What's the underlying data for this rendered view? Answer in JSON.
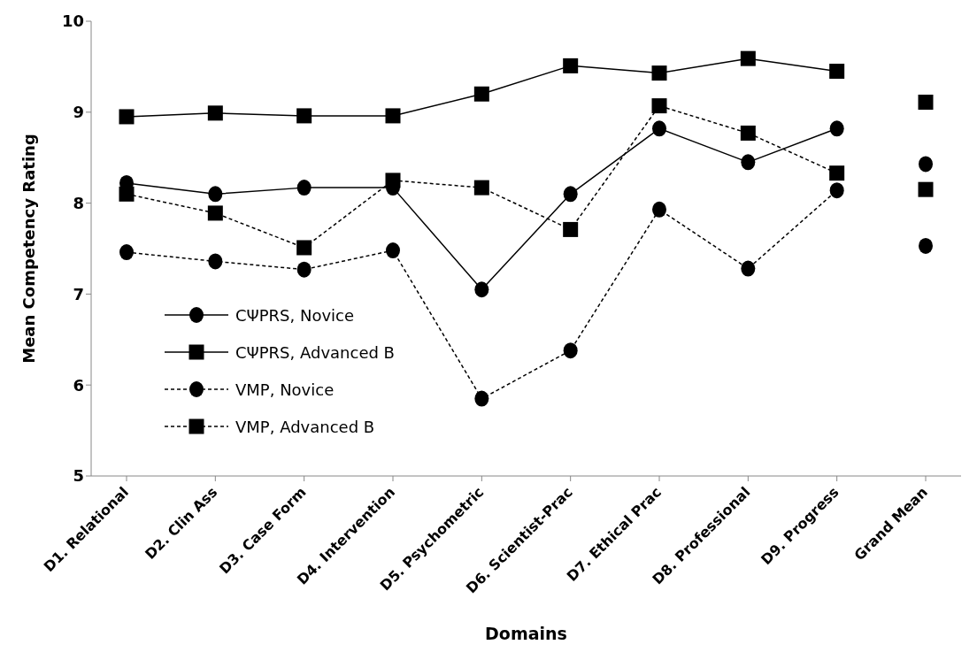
{
  "chart_data": {
    "type": "line",
    "xlabel": "Domains",
    "ylabel": "Mean Competency Rating",
    "categories": [
      "D1. Relational",
      "D2. Clin Ass",
      "D3. Case Form",
      "D4. Intervention",
      "D5. Psychometric",
      "D6. Scientist-Prac",
      "D7. Ethical Prac",
      "D8. Professional",
      "D9. Progress",
      "Grand Mean"
    ],
    "series": [
      {
        "name": "CΨPRS, Novice",
        "color": "#000000",
        "marker": "circle",
        "line_style": "solid",
        "values": [
          8.22,
          8.1,
          8.17,
          8.17,
          7.05,
          8.1,
          8.82,
          8.45,
          8.82,
          null
        ]
      },
      {
        "name": "CΨPRS, Advanced B",
        "color": "#000000",
        "marker": "square",
        "line_style": "solid",
        "values": [
          8.95,
          8.99,
          8.96,
          8.96,
          9.2,
          9.51,
          9.43,
          9.59,
          9.45,
          null
        ]
      },
      {
        "name": "VMP, Novice",
        "color": "#000000",
        "marker": "circle",
        "line_style": "dashed",
        "values": [
          7.46,
          7.36,
          7.27,
          7.48,
          5.85,
          6.38,
          7.93,
          7.28,
          8.14,
          null
        ]
      },
      {
        "name": "VMP, Advanced B",
        "color": "#000000",
        "marker": "square",
        "line_style": "dashed",
        "values": [
          8.1,
          7.89,
          7.51,
          8.25,
          8.17,
          7.71,
          9.07,
          8.77,
          8.33,
          null
        ]
      },
      {
        "type": "scatter",
        "color": "#000000",
        "marker": "circle",
        "x": [
          "Grand Mean"
        ],
        "values": [
          8.43
        ]
      },
      {
        "type": "scatter",
        "color": "#000000",
        "marker": "square",
        "x": [
          "Grand Mean"
        ],
        "values": [
          9.11
        ]
      },
      {
        "type": "scatter",
        "color": "#000000",
        "marker": "circle",
        "x": [
          "Grand Mean"
        ],
        "values": [
          7.53
        ]
      },
      {
        "type": "scatter",
        "color": "#000000",
        "marker": "square",
        "x": [
          "Grand Mean"
        ],
        "values": [
          8.15
        ]
      }
    ],
    "ylim": [
      5,
      10
    ],
    "yticks": [
      5,
      6,
      7,
      8,
      9,
      10
    ],
    "grid": false,
    "legend": "bottom left"
  }
}
